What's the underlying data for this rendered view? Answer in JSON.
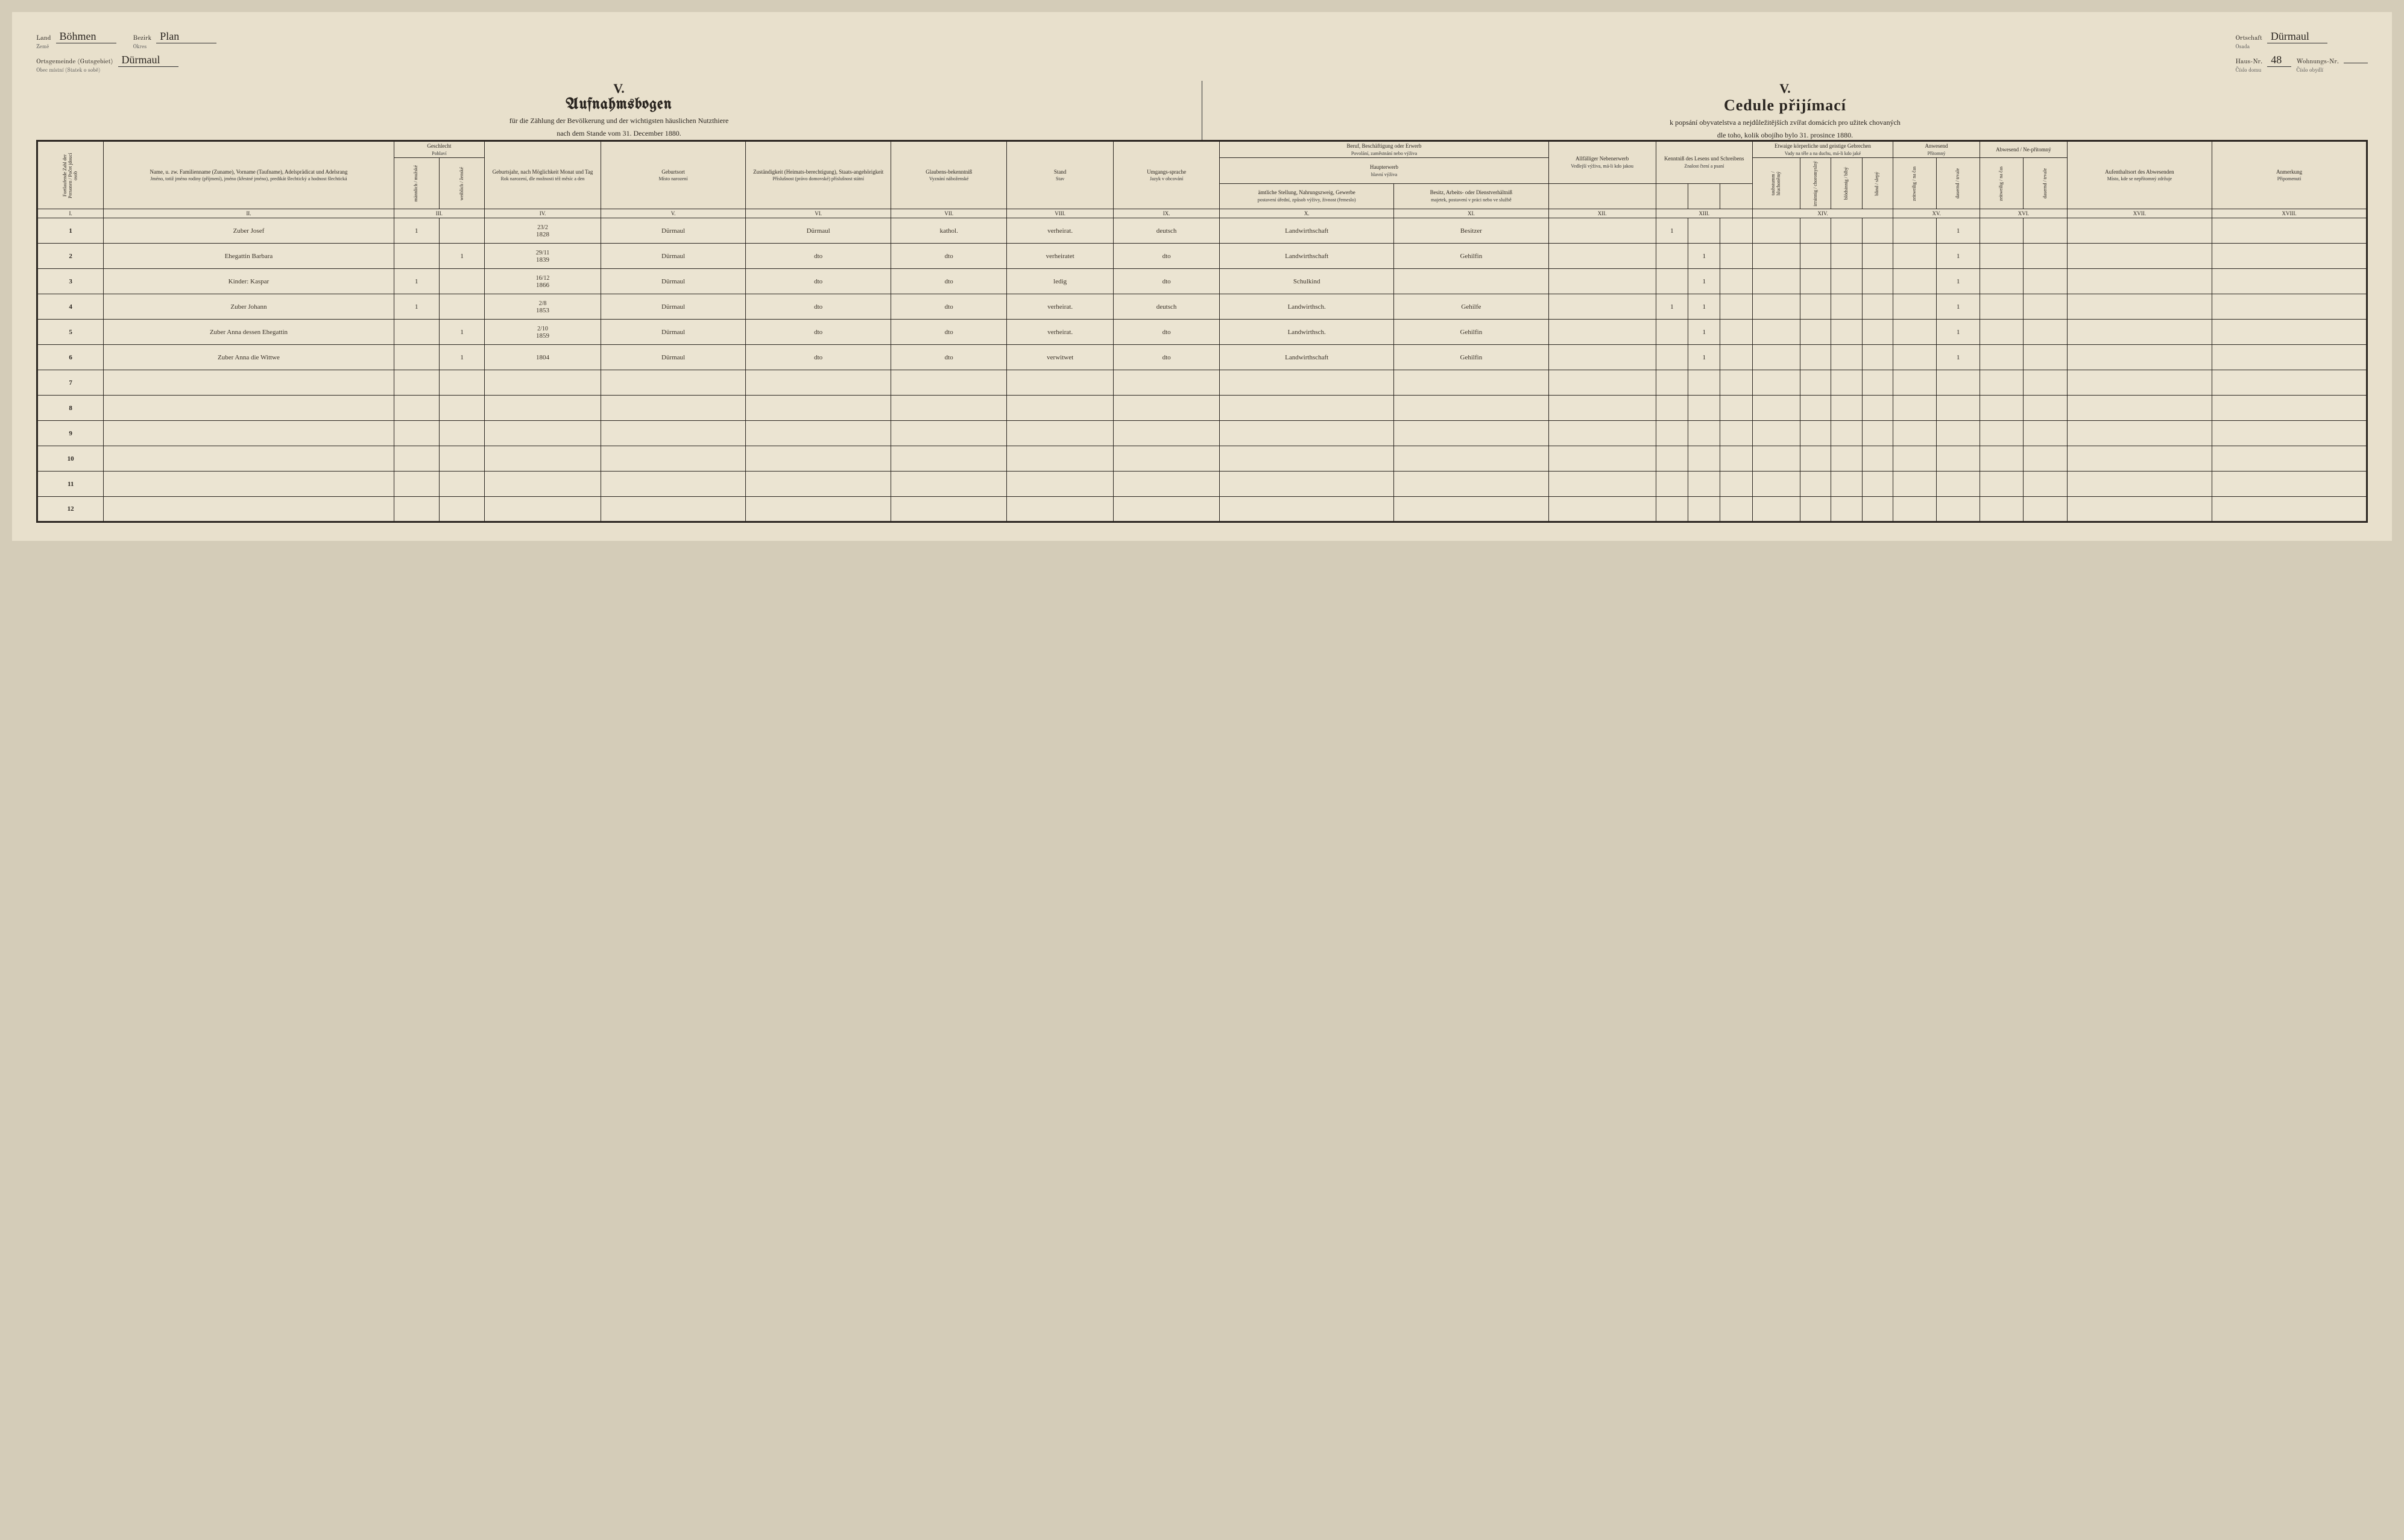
{
  "meta": {
    "land_label_de": "Land",
    "land_label_cz": "Země",
    "land_value": "Böhmen",
    "bezirk_label_de": "Bezirk",
    "bezirk_label_cz": "Okres",
    "bezirk_value": "Plan",
    "ortsgemeinde_label_de": "Ortsgemeinde (Gutsgebiet)",
    "ortsgemeinde_label_cz": "Obec místní (Statek o sobě)",
    "ortsgemeinde_value": "Dürmaul",
    "ortschaft_label_de": "Ortschaft",
    "ortschaft_label_cz": "Osada",
    "ortschaft_value": "Dürmaul",
    "hausnr_label_de": "Haus-Nr.",
    "hausnr_label_cz": "Číslo domu",
    "hausnr_value": "48",
    "wohnungsnr_label_de": "Wohnungs-Nr.",
    "wohnungsnr_label_cz": "Číslo obydlí",
    "wohnungsnr_value": ""
  },
  "titles": {
    "roman": "V.",
    "de_main": "Aufnahmsbogen",
    "de_sub": "für die Zählung der Bevölkerung und der wichtigsten häuslichen Nutzthiere",
    "de_date": "nach dem Stande vom 31. December 1880.",
    "cz_main": "Cedule přijímací",
    "cz_sub": "k popsání obyvatelstva a nejdůležitějších zvířat domácích pro užitek chovaných",
    "cz_date": "dle toho, kolik obojího bylo 31. prosince 1880."
  },
  "columns": {
    "c1": {
      "de": "Fortlaufende Zahl der Personen",
      "cz": "Počet jdoucí osob"
    },
    "c2": {
      "de": "Name, u. zw. Familienname (Zuname), Vorname (Taufname), Adelsprädicat und Adelsrang",
      "cz": "Jméno, totiž jméno rodiny (příjmení), jméno (křestné jméno), predikát šlechtický a hodnost šlechtická"
    },
    "c3": {
      "de": "Geschlecht",
      "cz": "Pohlaví",
      "sub_m_de": "männlich",
      "sub_m_cz": "mužské",
      "sub_f_de": "weiblich",
      "sub_f_cz": "ženské"
    },
    "c4": {
      "de": "Geburtsjahr, nach Möglichkeit Monat und Tag",
      "cz": "Rok narození, dle možnosti též měsíc a den"
    },
    "c5": {
      "de": "Geburtsort",
      "cz": "Místo narození"
    },
    "c6": {
      "de": "Zuständigkeit (Heimats-berechtigung), Staats-angehörigkeit",
      "cz": "Příslušnost (právo domovské) příslušnost státní"
    },
    "c7": {
      "de": "Glaubens-bekenntniß",
      "cz": "Vyznání náboženské"
    },
    "c8": {
      "de": "Stand",
      "cz": "Stav"
    },
    "c9": {
      "de": "Umgangs-sprache",
      "cz": "Jazyk v obcování"
    },
    "c10_11_top": {
      "de": "Beruf, Beschäftigung oder Erwerb",
      "cz": "Povolání, zaměstnání nebo výživa"
    },
    "c10_11_mid": {
      "de": "Haupterwerb",
      "cz": "hlavní výživa"
    },
    "c10": {
      "de": "ämtliche Stellung, Nahrungszweig, Gewerbe",
      "cz": "postavení úřední, způsob výživy, živnost (řemeslo)"
    },
    "c11": {
      "de": "Besitz, Arbeits- oder Dienstverhältniß",
      "cz": "majetek, postavení v práci nebo ve službě"
    },
    "c12": {
      "de": "Allfälliger Nebenerwerb",
      "cz": "Vedlejší výživa, má-li kdo jakou"
    },
    "c13": {
      "de": "Kenntniß des Lesens und Schreibens",
      "cz": "Znalost čtení a psaní"
    },
    "c14": {
      "de": "Etwaige körperliche und geistige Gebrechen",
      "cz": "Vady na těle a na duchu, má-li kdo jaké"
    },
    "c14_sub": {
      "a": "taubstumm / hluchoněmý",
      "b": "irrsinnig / choromyslný",
      "c": "blödsinnig / blbý",
      "d": "blind / slepý"
    },
    "c15": {
      "de": "Anwesend",
      "cz": "Přítomný"
    },
    "c16": {
      "de": "Abwesend / Ne-přítomný"
    },
    "c15_16_sub": {
      "a": "zeitweilig / na čas",
      "b": "dauernd / trvale",
      "c": "zeitweilig / na čas",
      "d": "dauernd / trvale"
    },
    "c17": {
      "de": "Aufenthaltsort des Abwesenden",
      "cz": "Místo, kde se nepřítomný zdržuje"
    },
    "c18": {
      "de": "Anmerkung",
      "cz": "Připomenutí"
    }
  },
  "romans": [
    "I.",
    "II.",
    "III.",
    "IV.",
    "V.",
    "VI.",
    "VII.",
    "VIII.",
    "IX.",
    "X.",
    "XI.",
    "XII.",
    "XIII.",
    "XIV.",
    "XV.",
    "XVI.",
    "XVII.",
    "XVIII."
  ],
  "rows": [
    {
      "n": "1",
      "name": "Zuber Josef",
      "m": "1",
      "f": "",
      "birth_frac": "23/2",
      "birth_year": "1828",
      "place": "Dürmaul",
      "zust": "Dürmaul",
      "relig": "kathol.",
      "stand": "verheirat.",
      "lang": "deutsch",
      "occ": "Landwirthschaft",
      "pos": "Besitzer",
      "neben": "",
      "lit1": "1",
      "lit2": "",
      "lit3": "",
      "g1": "",
      "g2": "",
      "g3": "",
      "g4": "",
      "p1": "",
      "p2": "1",
      "a1": "",
      "a2": "",
      "ort": "",
      "anm": ""
    },
    {
      "n": "2",
      "name": "Ehegattin Barbara",
      "m": "",
      "f": "1",
      "birth_frac": "29/11",
      "birth_year": "1839",
      "place": "Dürmaul",
      "zust": "dto",
      "relig": "dto",
      "stand": "verheiratet",
      "lang": "dto",
      "occ": "Landwirthschaft",
      "pos": "Gehilfin",
      "neben": "",
      "lit1": "",
      "lit2": "1",
      "lit3": "",
      "g1": "",
      "g2": "",
      "g3": "",
      "g4": "",
      "p1": "",
      "p2": "1",
      "a1": "",
      "a2": "",
      "ort": "",
      "anm": ""
    },
    {
      "n": "3",
      "name": "Kinder: Kaspar",
      "m": "1",
      "f": "",
      "birth_frac": "16/12",
      "birth_year": "1866",
      "place": "Dürmaul",
      "zust": "dto",
      "relig": "dto",
      "stand": "ledig",
      "lang": "dto",
      "occ": "Schulkind",
      "pos": "",
      "neben": "",
      "lit1": "",
      "lit2": "1",
      "lit3": "",
      "g1": "",
      "g2": "",
      "g3": "",
      "g4": "",
      "p1": "",
      "p2": "1",
      "a1": "",
      "a2": "",
      "ort": "",
      "anm": ""
    },
    {
      "n": "4",
      "name": "Zuber Johann",
      "m": "1",
      "f": "",
      "birth_frac": "2/8",
      "birth_year": "1853",
      "place": "Dürmaul",
      "zust": "dto",
      "relig": "dto",
      "stand": "verheirat.",
      "lang": "deutsch",
      "occ": "Landwirthsch.",
      "pos": "Gehilfe",
      "neben": "",
      "lit1": "1",
      "lit2": "1",
      "lit3": "",
      "g1": "",
      "g2": "",
      "g3": "",
      "g4": "",
      "p1": "",
      "p2": "1",
      "a1": "",
      "a2": "",
      "ort": "",
      "anm": ""
    },
    {
      "n": "5",
      "name": "Zuber Anna dessen Ehegattin",
      "m": "",
      "f": "1",
      "birth_frac": "2/10",
      "birth_year": "1859",
      "place": "Dürmaul",
      "zust": "dto",
      "relig": "dto",
      "stand": "verheirat.",
      "lang": "dto",
      "occ": "Landwirthsch.",
      "pos": "Gehilfin",
      "neben": "",
      "lit1": "",
      "lit2": "1",
      "lit3": "",
      "g1": "",
      "g2": "",
      "g3": "",
      "g4": "",
      "p1": "",
      "p2": "1",
      "a1": "",
      "a2": "",
      "ort": "",
      "anm": ""
    },
    {
      "n": "6",
      "name": "Zuber Anna die Wittwe",
      "m": "",
      "f": "1",
      "birth_frac": "",
      "birth_year": "1804",
      "place": "Dürmaul",
      "zust": "dto",
      "relig": "dto",
      "stand": "verwitwet",
      "lang": "dto",
      "occ": "Landwirthschaft",
      "pos": "Gehilfin",
      "neben": "",
      "lit1": "",
      "lit2": "1",
      "lit3": "",
      "g1": "",
      "g2": "",
      "g3": "",
      "g4": "",
      "p1": "",
      "p2": "1",
      "a1": "",
      "a2": "",
      "ort": "",
      "anm": ""
    },
    {
      "n": "7"
    },
    {
      "n": "8"
    },
    {
      "n": "9"
    },
    {
      "n": "10"
    },
    {
      "n": "11"
    },
    {
      "n": "12"
    }
  ],
  "colors": {
    "page_bg": "#e8e0cc",
    "body_bg": "#d4ccb8",
    "ink": "#2a2520",
    "handwriting": "#3a3228"
  }
}
